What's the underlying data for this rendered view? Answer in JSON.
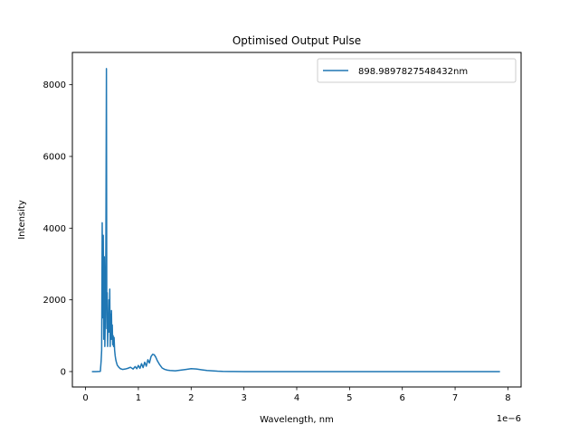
{
  "chart_data": {
    "type": "line",
    "title": "Optimised Output Pulse",
    "xlabel": "Wavelength, nm",
    "ylabel": "Intensity",
    "x_offset_label": "1e−6",
    "xlim": [
      -2.5e-07,
      8.25e-06
    ],
    "ylim": [
      -430,
      8900
    ],
    "x_ticks": [
      0,
      1e-06,
      2e-06,
      3e-06,
      4e-06,
      5e-06,
      6e-06,
      7e-06,
      8e-06
    ],
    "x_tick_labels": [
      "0",
      "1",
      "2",
      "3",
      "4",
      "5",
      "6",
      "7",
      "8"
    ],
    "y_ticks": [
      0,
      2000,
      4000,
      6000,
      8000
    ],
    "y_tick_labels": [
      "0",
      "2000",
      "4000",
      "6000",
      "8000"
    ],
    "grid": false,
    "legend_position": "top-right",
    "series": [
      {
        "name": "898.9897827548432nm",
        "color": "#1f77b4",
        "x": [
          1.2e-07,
          2e-07,
          2.8e-07,
          2.95e-07,
          3.05e-07,
          3.15e-07,
          3.25e-07,
          3.35e-07,
          3.45e-07,
          3.55e-07,
          3.65e-07,
          3.75e-07,
          3.85e-07,
          3.95e-07,
          4.02e-07,
          4.1e-07,
          4.18e-07,
          4.26e-07,
          4.34e-07,
          4.42e-07,
          4.5e-07,
          4.58e-07,
          4.66e-07,
          4.74e-07,
          4.82e-07,
          4.9e-07,
          4.98e-07,
          5.06e-07,
          5.14e-07,
          5.22e-07,
          5.3e-07,
          5.4e-07,
          5.5e-07,
          5.6e-07,
          5.7e-07,
          5.8e-07,
          6e-07,
          6.3e-07,
          6.6e-07,
          7e-07,
          7.5e-07,
          8e-07,
          8.5e-07,
          9e-07,
          9.4e-07,
          9.7e-07,
          1e-06,
          1.03e-06,
          1.06e-06,
          1.09e-06,
          1.12e-06,
          1.15e-06,
          1.18e-06,
          1.21e-06,
          1.24e-06,
          1.27e-06,
          1.3e-06,
          1.33e-06,
          1.36e-06,
          1.4e-06,
          1.45e-06,
          1.5e-06,
          1.55e-06,
          1.6e-06,
          1.7e-06,
          1.8e-06,
          1.9e-06,
          2e-06,
          2.1e-06,
          2.2e-06,
          2.3e-06,
          2.4e-06,
          2.5e-06,
          2.6e-06,
          2.8e-06,
          3e-06,
          4e-06,
          5e-06,
          6e-06,
          7e-06,
          7.85e-06
        ],
        "y": [
          0,
          0,
          5,
          300,
          600,
          4150,
          1500,
          3800,
          900,
          3200,
          700,
          1600,
          3500,
          8450,
          1200,
          2200,
          700,
          1500,
          1100,
          2000,
          1100,
          2300,
          700,
          1600,
          900,
          1700,
          900,
          1300,
          750,
          1000,
          700,
          950,
          600,
          450,
          350,
          280,
          180,
          120,
          80,
          60,
          70,
          90,
          120,
          70,
          140,
          80,
          170,
          90,
          220,
          110,
          260,
          150,
          330,
          240,
          420,
          480,
          470,
          400,
          300,
          200,
          100,
          60,
          40,
          30,
          20,
          40,
          60,
          80,
          70,
          50,
          30,
          20,
          10,
          5,
          2,
          0,
          0,
          0,
          0,
          0,
          0
        ]
      }
    ]
  }
}
